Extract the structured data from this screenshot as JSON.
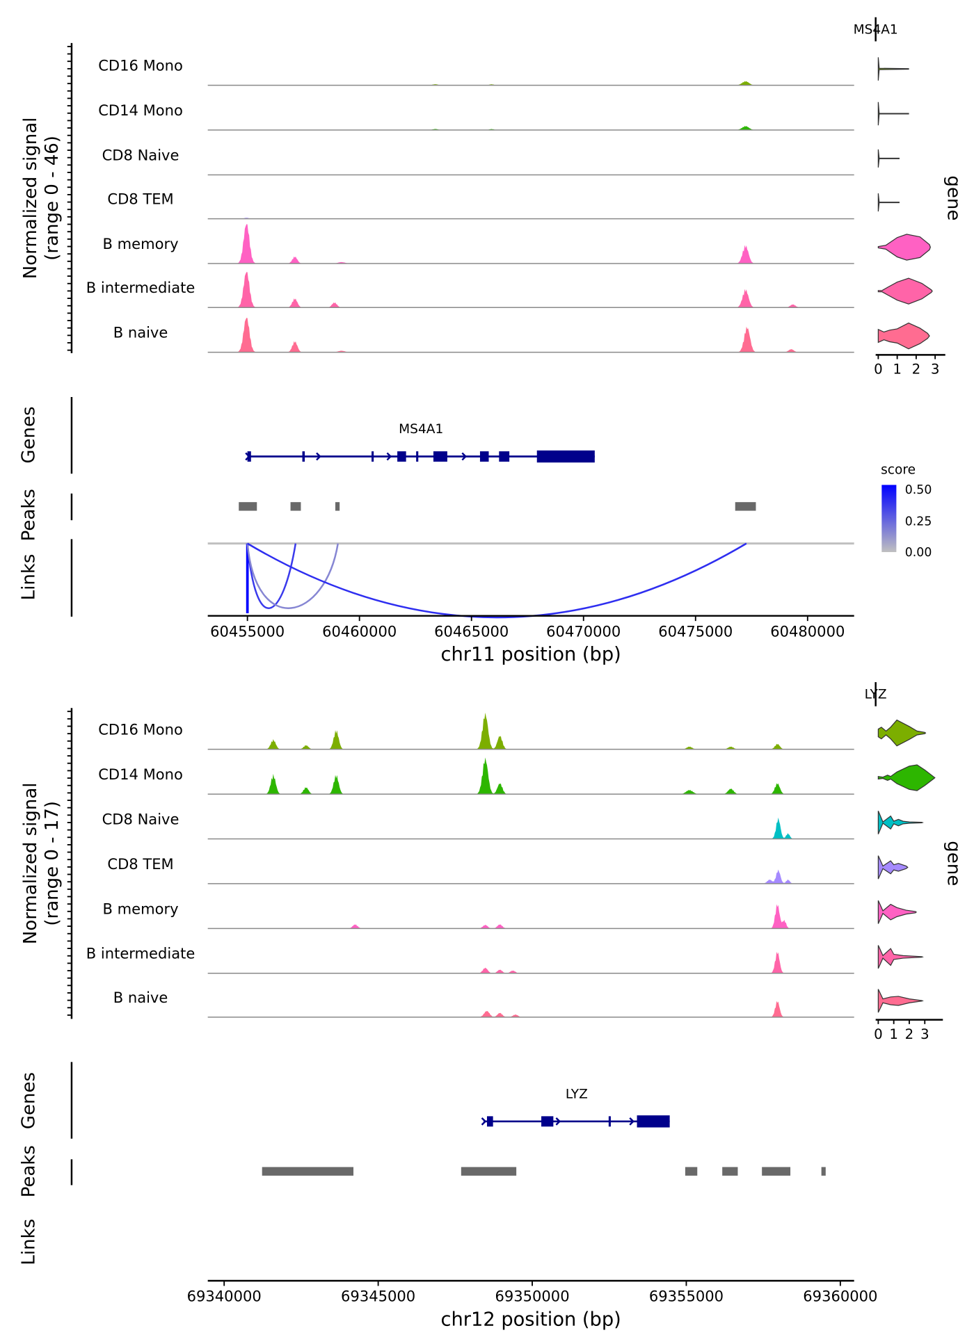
{
  "chart_data": [
    {
      "type": "area",
      "chromosome": "chr11",
      "xlabel": "chr11 position (bp)",
      "ylabel": "Normalized signal",
      "ylabel2": "(range 0 - 46)",
      "ylim": [
        0,
        46
      ],
      "xlim": [
        60453230,
        60482080
      ],
      "xticks": [
        60455000,
        60460000,
        60465000,
        60470000,
        60475000,
        60480000
      ],
      "gene_name": "MS4A1",
      "violin_axis_label": "gene",
      "violin_xticks": [
        0,
        1,
        2,
        3
      ],
      "violin_xmax": 3.4,
      "panel_labels": {
        "genes": "Genes",
        "peaks": "Peaks",
        "links": "Links"
      },
      "tracks": [
        {
          "name": "CD16 Mono",
          "color": "#7CAE00",
          "peaks": [
            [
              60477230,
              4,
              150
            ],
            [
              60463385,
              1,
              120
            ],
            [
              60465900,
              1,
              100
            ]
          ],
          "violin": [
            [
              0,
              0.9
            ],
            [
              0.05,
              0.05
            ],
            [
              1.6,
              0.02
            ]
          ]
        },
        {
          "name": "CD14 Mono",
          "color": "#2DB600",
          "peaks": [
            [
              60477230,
              4,
              150
            ],
            [
              60463385,
              1,
              120
            ],
            [
              60465900,
              1,
              100
            ]
          ],
          "violin": [
            [
              0,
              0.9
            ],
            [
              0.05,
              0.02
            ],
            [
              1.6,
              0.02
            ]
          ]
        },
        {
          "name": "CD8 Naive",
          "color": "#00BFC4",
          "peaks": [],
          "violin": [
            [
              0,
              0.7
            ],
            [
              0.05,
              0.02
            ],
            [
              1.1,
              0.02
            ]
          ]
        },
        {
          "name": "CD8 TEM",
          "color": "#A58AFF",
          "peaks": [
            [
              60454960,
              1,
              100
            ]
          ],
          "violin": [
            [
              0,
              0.7
            ],
            [
              0.05,
              0.02
            ],
            [
              1.1,
              0.02
            ]
          ]
        },
        {
          "name": "B memory",
          "color": "#FF61C3",
          "peaks": [
            [
              60454960,
              40,
              130
            ],
            [
              60457115,
              7,
              110
            ],
            [
              60477230,
              18,
              130
            ],
            [
              60459200,
              1.5,
              150
            ]
          ],
          "violin": [
            [
              0,
              0.05
            ],
            [
              0.4,
              0.15
            ],
            [
              1.0,
              0.75
            ],
            [
              1.5,
              1.0
            ],
            [
              2.2,
              0.8
            ],
            [
              2.7,
              0.2
            ],
            [
              2.75,
              0
            ]
          ]
        },
        {
          "name": "B intermediate",
          "color": "#FF64A8",
          "peaks": [
            [
              60454960,
              36,
              130
            ],
            [
              60457115,
              9,
              110
            ],
            [
              60458885,
              5,
              110
            ],
            [
              60477230,
              18,
              130
            ],
            [
              60479345,
              3,
              120
            ]
          ],
          "violin": [
            [
              0,
              0.05
            ],
            [
              0.2,
              0.05
            ],
            [
              0.5,
              0.3
            ],
            [
              1.0,
              0.7
            ],
            [
              1.6,
              1.0
            ],
            [
              2.3,
              0.6
            ],
            [
              2.8,
              0.1
            ],
            [
              2.85,
              0
            ]
          ]
        },
        {
          "name": "B naive",
          "color": "#FF6C91",
          "peaks": [
            [
              60454960,
              35,
              130
            ],
            [
              60457115,
              11,
              110
            ],
            [
              60477300,
              25,
              130
            ],
            [
              60479270,
              3,
              120
            ],
            [
              60459200,
              1.5,
              150
            ]
          ],
          "violin": [
            [
              0,
              0.5
            ],
            [
              0.3,
              0.3
            ],
            [
              0.6,
              0.45
            ],
            [
              1.0,
              0.55
            ],
            [
              1.6,
              1.0
            ],
            [
              2.2,
              0.6
            ],
            [
              2.6,
              0.2
            ],
            [
              2.7,
              0
            ]
          ]
        }
      ],
      "gene_model": {
        "start": 60455000,
        "end": 60470500,
        "strand": "+",
        "exons": [
          [
            60455000,
            60455160
          ],
          [
            60457450,
            60457560
          ],
          [
            60460540,
            60460620
          ],
          [
            60461690,
            60462080
          ],
          [
            60462530,
            60462620
          ],
          [
            60463300,
            60463920
          ],
          [
            60465380,
            60465770
          ],
          [
            60466230,
            60466690
          ],
          [
            60467920,
            60470500
          ]
        ],
        "arrows": [
          60458200,
          60461350,
          60464700
        ]
      },
      "peak_regions": [
        [
          60454615,
          60455423
        ],
        [
          60456923,
          60457385
        ],
        [
          60458923,
          60459115
        ],
        [
          60476769,
          60477692
        ]
      ],
      "links": [
        {
          "start": 60455000,
          "end": 60455000,
          "score": 0.5
        },
        {
          "start": 60455000,
          "end": 60457150,
          "score": 0.35
        },
        {
          "start": 60455000,
          "end": 60459040,
          "score": 0.15
        },
        {
          "start": 60455000,
          "end": 60477270,
          "score": 0.38
        }
      ],
      "legend": {
        "title": "score",
        "ticks": [
          "0.50",
          "0.25",
          "0.00"
        ],
        "high_color": "#0000FF",
        "low_color": "#C0C0C0"
      }
    },
    {
      "type": "area",
      "chromosome": "chr12",
      "xlabel": "chr12 position (bp)",
      "ylabel": "Normalized signal",
      "ylabel2": "(range 0 - 17)",
      "ylim": [
        0,
        17
      ],
      "xlim": [
        69339470,
        69360450
      ],
      "xticks": [
        69340000,
        69345000,
        69350000,
        69355000,
        69360000
      ],
      "gene_name": "LYZ",
      "violin_axis_label": "gene",
      "violin_xticks": [
        0,
        1,
        2,
        3
      ],
      "violin_xmax": 4,
      "panel_labels": {
        "genes": "Genes",
        "peaks": "Peaks",
        "links": "Links"
      },
      "tracks": [
        {
          "name": "CD16 Mono",
          "color": "#7CAE00",
          "peaks": [
            [
              69348475,
              13,
              90
            ],
            [
              69343636,
              7,
              80
            ],
            [
              69341594,
              3.5,
              80
            ],
            [
              69348950,
              5,
              80
            ],
            [
              69357957,
              2,
              80
            ],
            [
              69355104,
              1,
              90
            ],
            [
              69356447,
              1,
              90
            ],
            [
              69342657,
              1.5,
              80
            ]
          ],
          "violin": [
            [
              0,
              0.3
            ],
            [
              0.2,
              0.45
            ],
            [
              0.5,
              0.15
            ],
            [
              0.8,
              0.45
            ],
            [
              1.2,
              1.0
            ],
            [
              2.0,
              0.5
            ],
            [
              2.5,
              0.15
            ],
            [
              3.0,
              0.05
            ],
            [
              3.05,
              0
            ]
          ]
        },
        {
          "name": "CD14 Mono",
          "color": "#2DB600",
          "peaks": [
            [
              69348475,
              13,
              90
            ],
            [
              69341594,
              7,
              80
            ],
            [
              69343636,
              7,
              80
            ],
            [
              69342657,
              2.5,
              80
            ],
            [
              69348950,
              4,
              80
            ],
            [
              69355104,
              1.5,
              110
            ],
            [
              69356447,
              2,
              90
            ],
            [
              69357957,
              4,
              80
            ]
          ],
          "violin": [
            [
              0,
              0.1
            ],
            [
              0.3,
              0.05
            ],
            [
              0.6,
              0.2
            ],
            [
              0.8,
              0.1
            ],
            [
              1.2,
              0.45
            ],
            [
              2.0,
              0.9
            ],
            [
              2.5,
              1.0
            ],
            [
              3.0,
              0.6
            ],
            [
              3.6,
              0.05
            ],
            [
              3.65,
              0
            ]
          ]
        },
        {
          "name": "CD8 Naive",
          "color": "#00BFC4",
          "peaks": [
            [
              69357985,
              7.5,
              70
            ],
            [
              69358300,
              2,
              60
            ]
          ],
          "violin": [
            [
              0,
              0.9
            ],
            [
              0.3,
              0.05
            ],
            [
              0.8,
              0.5
            ],
            [
              1.0,
              0.1
            ],
            [
              1.3,
              0.25
            ],
            [
              1.6,
              0.1
            ],
            [
              2.0,
              0.05
            ],
            [
              2.8,
              0.02
            ],
            [
              2.85,
              0
            ]
          ]
        },
        {
          "name": "CD8 TEM",
          "color": "#A58AFF",
          "peaks": [
            [
              69357985,
              5,
              70
            ],
            [
              69357705,
              1.5,
              80
            ],
            [
              69358300,
              1.5,
              60
            ]
          ],
          "violin": [
            [
              0,
              0.9
            ],
            [
              0.3,
              0.1
            ],
            [
              0.8,
              0.5
            ],
            [
              1.0,
              0.2
            ],
            [
              1.3,
              0.3
            ],
            [
              1.8,
              0.1
            ],
            [
              1.9,
              0
            ]
          ]
        },
        {
          "name": "B memory",
          "color": "#FF61C3",
          "peaks": [
            [
              69357957,
              9,
              70
            ],
            [
              69358181,
              3,
              60
            ],
            [
              69344252,
              1.5,
              80
            ],
            [
              69348475,
              1.3,
              80
            ],
            [
              69348950,
              1.5,
              80
            ]
          ],
          "violin": [
            [
              0,
              0.9
            ],
            [
              0.3,
              0.1
            ],
            [
              0.8,
              0.6
            ],
            [
              1.2,
              0.35
            ],
            [
              1.8,
              0.15
            ],
            [
              2.4,
              0.05
            ],
            [
              2.45,
              0
            ]
          ]
        },
        {
          "name": "B intermediate",
          "color": "#FF64A8",
          "peaks": [
            [
              69357957,
              8,
              70
            ],
            [
              69348475,
              2,
              80
            ],
            [
              69348950,
              1.3,
              80
            ],
            [
              69349370,
              1,
              80
            ]
          ],
          "violin": [
            [
              0,
              0.9
            ],
            [
              0.3,
              0.1
            ],
            [
              0.8,
              0.65
            ],
            [
              1.0,
              0.2
            ],
            [
              1.6,
              0.1
            ],
            [
              2.8,
              0.02
            ],
            [
              2.85,
              0
            ]
          ]
        },
        {
          "name": "B naive",
          "color": "#FF6C91",
          "peaks": [
            [
              69357957,
              6,
              70
            ],
            [
              69348525,
              2.3,
              90
            ],
            [
              69348950,
              1.6,
              80
            ],
            [
              69349454,
              1,
              80
            ]
          ],
          "violin": [
            [
              0,
              0.9
            ],
            [
              0.3,
              0.15
            ],
            [
              0.8,
              0.3
            ],
            [
              1.3,
              0.35
            ],
            [
              2.0,
              0.15
            ],
            [
              2.8,
              0.02
            ],
            [
              2.85,
              0
            ]
          ]
        }
      ],
      "gene_model": {
        "start": 69348420,
        "end": 69354462,
        "strand": "+",
        "exons": [
          [
            69348531,
            69348727
          ],
          [
            69350294,
            69350685
          ],
          [
            69352480,
            69352530
          ],
          [
            69353399,
            69354462
          ]
        ],
        "arrows": [
          69350860,
          69353250
        ]
      },
      "peak_regions": [
        [
          69341231,
          69344196
        ],
        [
          69347692,
          69349483
        ],
        [
          69354965,
          69355357
        ],
        [
          69356168,
          69356671
        ],
        [
          69357455,
          69358378
        ],
        [
          69359385,
          69359524
        ]
      ],
      "links": []
    }
  ]
}
